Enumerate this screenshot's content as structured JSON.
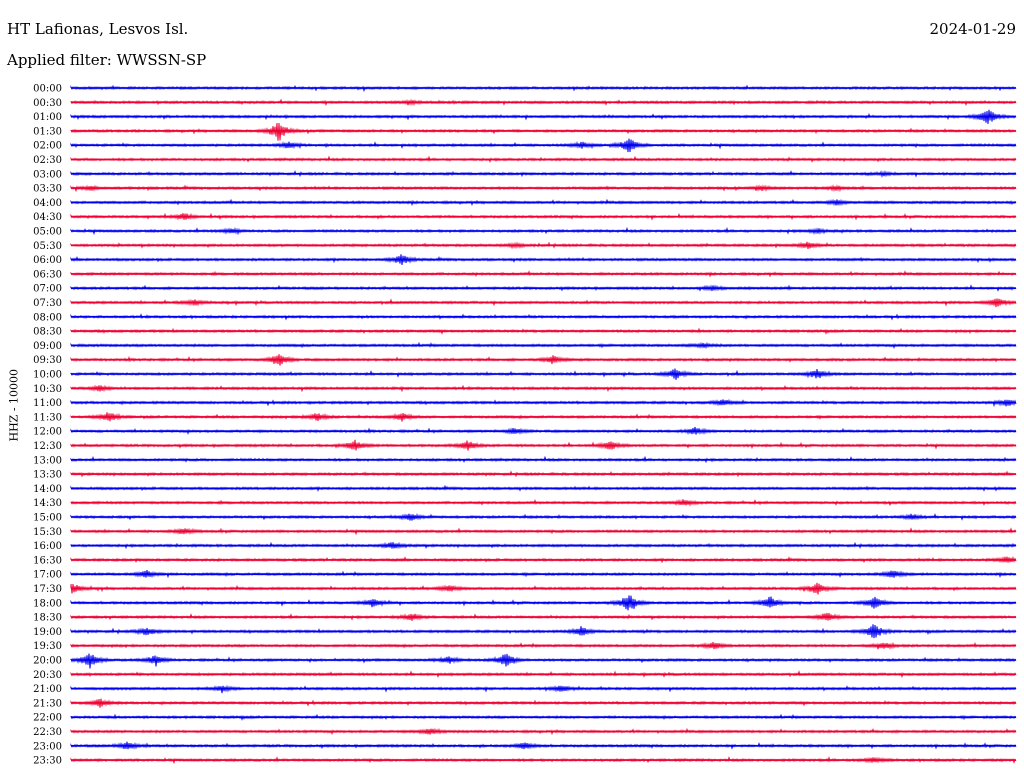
{
  "header": {
    "station": "HT Lafionas, Lesvos Isl.",
    "date": "2024-01-29",
    "filter": "Applied filter: WWSSN-SP"
  },
  "chart_data": {
    "type": "line",
    "title": "HT Lafionas, Lesvos Isl.",
    "subtitle": "Applied filter: WWSSN-SP",
    "ylabel": "HHZ - 10000",
    "xlabel": "",
    "grid": false,
    "colors": {
      "a": "#0000ee",
      "b": "#ee0033"
    },
    "rows": [
      {
        "label": "00:00",
        "color": "a",
        "events": []
      },
      {
        "label": "00:30",
        "color": "b",
        "events": [
          [
            0.36,
            0.15
          ]
        ]
      },
      {
        "label": "01:00",
        "color": "a",
        "events": [
          [
            0.97,
            0.85
          ]
        ]
      },
      {
        "label": "01:30",
        "color": "b",
        "events": [
          [
            0.22,
            1.0
          ]
        ]
      },
      {
        "label": "02:00",
        "color": "a",
        "events": [
          [
            0.54,
            0.3
          ],
          [
            0.59,
            0.75
          ],
          [
            0.23,
            0.25
          ]
        ]
      },
      {
        "label": "02:30",
        "color": "b",
        "events": []
      },
      {
        "label": "03:00",
        "color": "a",
        "events": [
          [
            0.86,
            0.15
          ]
        ]
      },
      {
        "label": "03:30",
        "color": "b",
        "events": [
          [
            0.02,
            0.2
          ],
          [
            0.73,
            0.2
          ],
          [
            0.81,
            0.2
          ]
        ]
      },
      {
        "label": "04:00",
        "color": "a",
        "events": [
          [
            0.81,
            0.25
          ]
        ]
      },
      {
        "label": "04:30",
        "color": "b",
        "events": [
          [
            0.12,
            0.3
          ]
        ]
      },
      {
        "label": "05:00",
        "color": "a",
        "events": [
          [
            0.17,
            0.2
          ],
          [
            0.79,
            0.2
          ]
        ]
      },
      {
        "label": "05:30",
        "color": "b",
        "events": [
          [
            0.78,
            0.3
          ],
          [
            0.47,
            0.2
          ]
        ]
      },
      {
        "label": "06:00",
        "color": "a",
        "events": [
          [
            0.35,
            0.5
          ]
        ]
      },
      {
        "label": "06:30",
        "color": "b",
        "events": []
      },
      {
        "label": "07:00",
        "color": "a",
        "events": [
          [
            0.68,
            0.2
          ]
        ]
      },
      {
        "label": "07:30",
        "color": "b",
        "events": [
          [
            0.98,
            0.45
          ],
          [
            0.13,
            0.25
          ]
        ]
      },
      {
        "label": "08:00",
        "color": "a",
        "events": []
      },
      {
        "label": "08:30",
        "color": "b",
        "events": []
      },
      {
        "label": "09:00",
        "color": "a",
        "events": [
          [
            0.67,
            0.2
          ]
        ]
      },
      {
        "label": "09:30",
        "color": "b",
        "events": [
          [
            0.22,
            0.7
          ],
          [
            0.51,
            0.4
          ]
        ]
      },
      {
        "label": "10:00",
        "color": "a",
        "events": [
          [
            0.64,
            0.55
          ],
          [
            0.79,
            0.5
          ]
        ]
      },
      {
        "label": "10:30",
        "color": "b",
        "events": [
          [
            0.03,
            0.3
          ]
        ]
      },
      {
        "label": "11:00",
        "color": "a",
        "events": [
          [
            0.69,
            0.3
          ],
          [
            0.99,
            0.35
          ]
        ]
      },
      {
        "label": "11:30",
        "color": "b",
        "events": [
          [
            0.04,
            0.5
          ],
          [
            0.26,
            0.4
          ],
          [
            0.35,
            0.4
          ]
        ]
      },
      {
        "label": "12:00",
        "color": "a",
        "events": [
          [
            0.66,
            0.35
          ],
          [
            0.47,
            0.3
          ]
        ]
      },
      {
        "label": "12:30",
        "color": "b",
        "events": [
          [
            0.3,
            0.55
          ],
          [
            0.42,
            0.45
          ],
          [
            0.57,
            0.45
          ]
        ]
      },
      {
        "label": "13:00",
        "color": "a",
        "events": []
      },
      {
        "label": "13:30",
        "color": "b",
        "events": []
      },
      {
        "label": "14:00",
        "color": "a",
        "events": []
      },
      {
        "label": "14:30",
        "color": "b",
        "events": [
          [
            0.65,
            0.3
          ]
        ]
      },
      {
        "label": "15:00",
        "color": "a",
        "events": [
          [
            0.36,
            0.35
          ],
          [
            0.89,
            0.25
          ]
        ]
      },
      {
        "label": "15:30",
        "color": "b",
        "events": [
          [
            0.12,
            0.3
          ]
        ]
      },
      {
        "label": "16:00",
        "color": "a",
        "events": [
          [
            0.34,
            0.35
          ]
        ]
      },
      {
        "label": "16:30",
        "color": "b",
        "events": [
          [
            0.99,
            0.3
          ]
        ]
      },
      {
        "label": "17:00",
        "color": "a",
        "events": [
          [
            0.87,
            0.4
          ],
          [
            0.08,
            0.35
          ]
        ]
      },
      {
        "label": "17:30",
        "color": "b",
        "events": [
          [
            0.0,
            0.55
          ],
          [
            0.79,
            0.55
          ],
          [
            0.4,
            0.35
          ]
        ]
      },
      {
        "label": "18:00",
        "color": "a",
        "events": [
          [
            0.59,
            0.9
          ],
          [
            0.74,
            0.6
          ],
          [
            0.85,
            0.65
          ],
          [
            0.32,
            0.45
          ]
        ]
      },
      {
        "label": "18:30",
        "color": "b",
        "events": [
          [
            0.8,
            0.45
          ],
          [
            0.36,
            0.35
          ]
        ]
      },
      {
        "label": "19:00",
        "color": "a",
        "events": [
          [
            0.85,
            0.75
          ],
          [
            0.54,
            0.45
          ],
          [
            0.08,
            0.4
          ]
        ]
      },
      {
        "label": "19:30",
        "color": "b",
        "events": [
          [
            0.68,
            0.35
          ],
          [
            0.86,
            0.35
          ]
        ]
      },
      {
        "label": "20:00",
        "color": "a",
        "events": [
          [
            0.02,
            0.8
          ],
          [
            0.46,
            0.65
          ],
          [
            0.4,
            0.4
          ],
          [
            0.09,
            0.5
          ]
        ]
      },
      {
        "label": "20:30",
        "color": "b",
        "events": []
      },
      {
        "label": "21:00",
        "color": "a",
        "events": [
          [
            0.52,
            0.3
          ],
          [
            0.16,
            0.3
          ]
        ]
      },
      {
        "label": "21:30",
        "color": "b",
        "events": [
          [
            0.03,
            0.4
          ]
        ]
      },
      {
        "label": "22:00",
        "color": "a",
        "events": []
      },
      {
        "label": "22:30",
        "color": "b",
        "events": [
          [
            0.38,
            0.3
          ]
        ]
      },
      {
        "label": "23:00",
        "color": "a",
        "events": [
          [
            0.06,
            0.4
          ],
          [
            0.48,
            0.3
          ]
        ]
      },
      {
        "label": "23:30",
        "color": "b",
        "events": [
          [
            0.85,
            0.25
          ]
        ]
      }
    ]
  }
}
